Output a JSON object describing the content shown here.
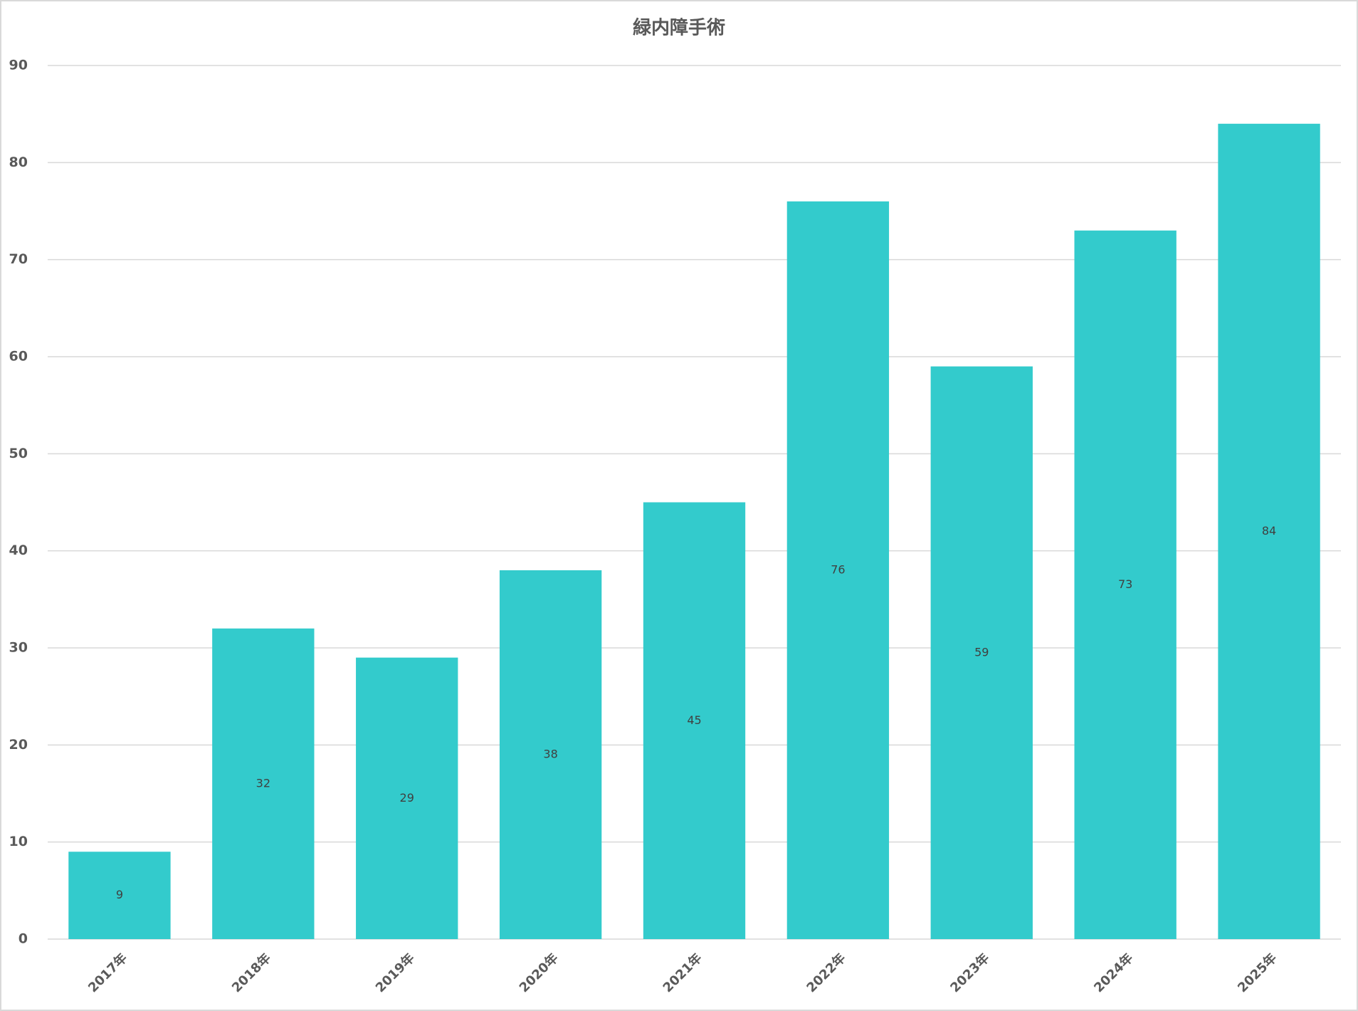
{
  "chart_data": {
    "type": "bar",
    "title": "緑内障手術",
    "categories": [
      "2017年",
      "2018年",
      "2019年",
      "2020年",
      "2021年",
      "2022年",
      "2023年",
      "2024年",
      "2025年"
    ],
    "values": [
      9,
      32,
      29,
      38,
      45,
      76,
      59,
      73,
      84
    ],
    "color": "#33cbcc",
    "ylim": [
      0,
      90
    ],
    "yticks": [
      0,
      10,
      20,
      30,
      40,
      50,
      60,
      70,
      80,
      90
    ],
    "grid": true,
    "data_labels": true
  }
}
